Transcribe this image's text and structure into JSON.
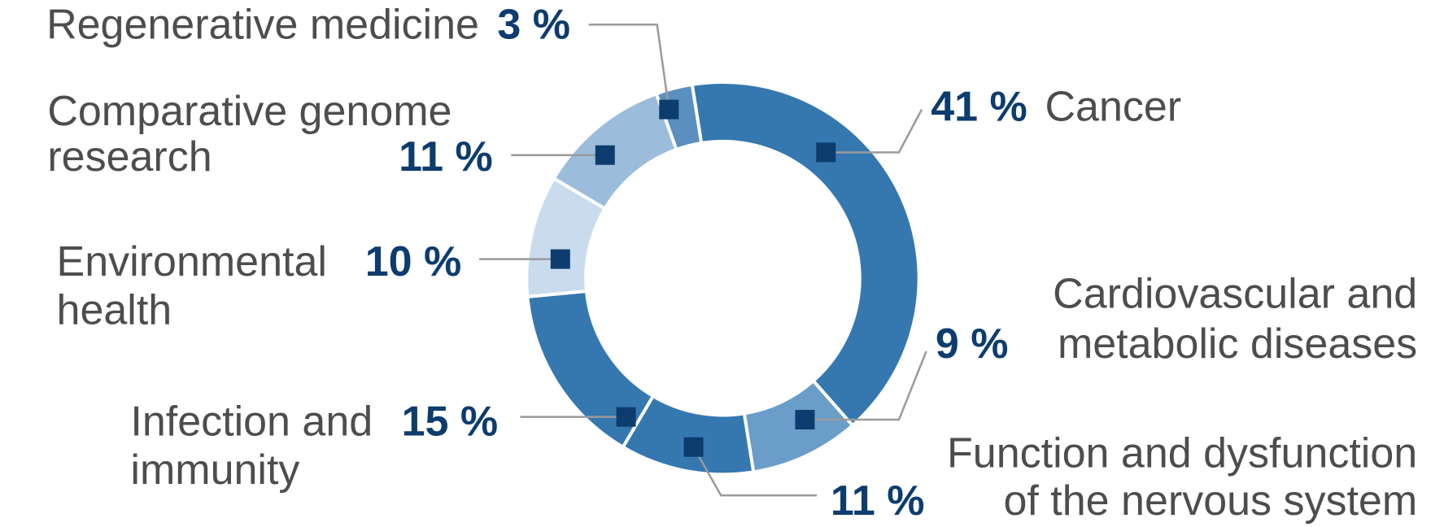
{
  "chart_data": {
    "type": "pie",
    "categories": [
      [
        "Cancer"
      ],
      [
        "Cardiovascular and",
        "metabolic diseases"
      ],
      [
        "Function and dysfunction",
        "of the nervous system"
      ],
      [
        "Infection and",
        "immunity"
      ],
      [
        "Environmental",
        "health"
      ],
      [
        "Comparative genome",
        "research"
      ],
      [
        "Regenerative medicine"
      ]
    ],
    "values": [
      41,
      9,
      11,
      15,
      10,
      11,
      3
    ],
    "value_labels": [
      "41 %",
      "9 %",
      "11 %",
      "15 %",
      "10 %",
      "11 %",
      "3 %"
    ],
    "colors": [
      "#3578b0",
      "#6a9dc8",
      "#3578b0",
      "#3578b0",
      "#c9dcee",
      "#9bbddb",
      "#5a8fc0"
    ],
    "donut": true
  }
}
